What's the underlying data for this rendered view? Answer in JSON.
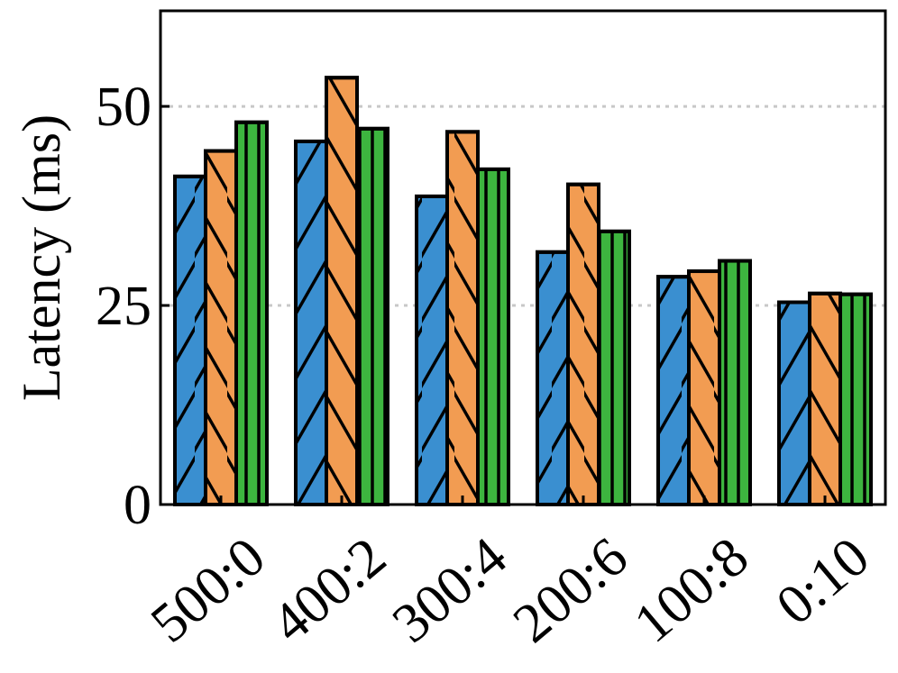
{
  "chart_data": {
    "type": "bar",
    "title": "",
    "xlabel": "",
    "ylabel": "Latency (ms)",
    "categories": [
      "500:0",
      "400:2",
      "300:4",
      "200:6",
      "100:8",
      "0:10"
    ],
    "series": [
      {
        "color": "#3a8fd0",
        "hatch": "/",
        "values": [
          41.2,
          45.6,
          38.7,
          31.7,
          28.6,
          25.4
        ]
      },
      {
        "color": "#f29c52",
        "hatch": "\\",
        "values": [
          44.4,
          53.6,
          46.8,
          40.2,
          29.3,
          26.5
        ]
      },
      {
        "color": "#3db53f",
        "hatch": "|",
        "values": [
          48.0,
          47.2,
          42.1,
          34.3,
          30.6,
          26.4
        ]
      }
    ],
    "ylim": [
      0,
      62
    ],
    "yticks": [
      0,
      25,
      50
    ],
    "ytick_labels": [
      "0",
      "25",
      "50"
    ],
    "grid": "y-dotted",
    "legend": "none"
  }
}
